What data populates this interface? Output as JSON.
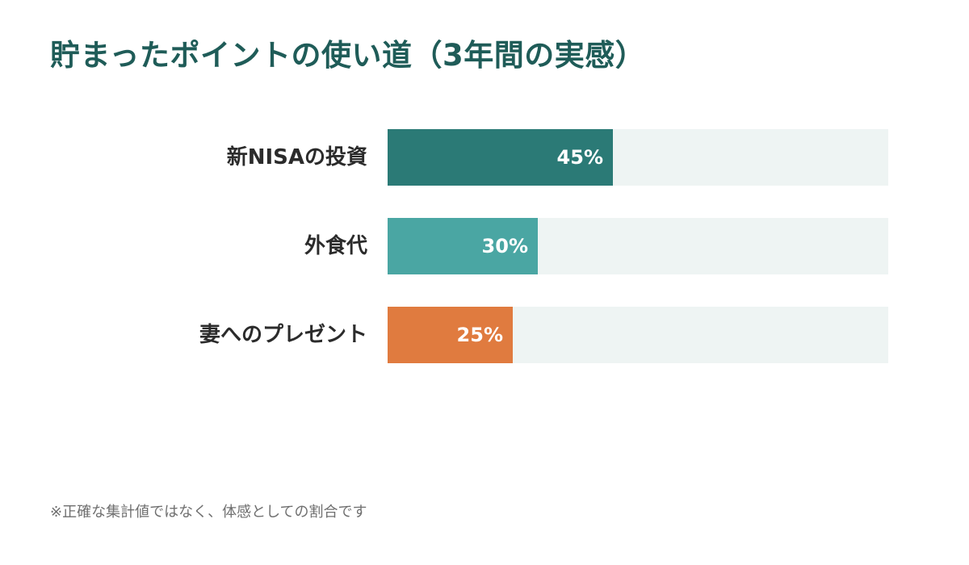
{
  "title": "貯まったポイントの使い道（3年間の実感）",
  "footnote": "※正確な集計値ではなく、体感としての割合です",
  "colors": {
    "title": "#1f5c58",
    "track": "#eef4f3"
  },
  "chart_data": {
    "type": "bar",
    "orientation": "horizontal",
    "title": "貯まったポイントの使い道（3年間の実感）",
    "categories": [
      "新NISAの投資",
      "外食代",
      "妻へのプレゼント"
    ],
    "values": [
      45,
      30,
      25
    ],
    "value_labels": [
      "45%",
      "30%",
      "25%"
    ],
    "colors": [
      "#2b7a76",
      "#4aa6a3",
      "#e07b3f"
    ],
    "xlim": [
      0,
      100
    ],
    "unit": "%",
    "grid": false,
    "legend": "none"
  }
}
